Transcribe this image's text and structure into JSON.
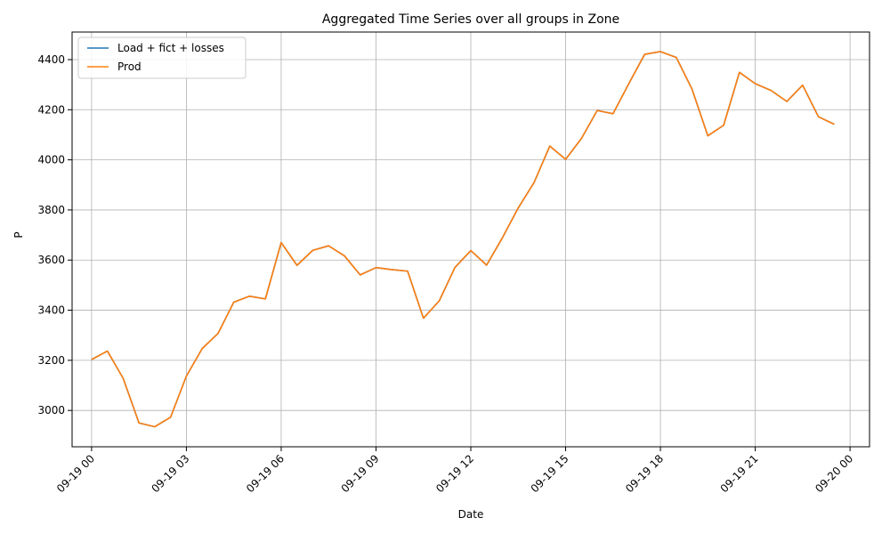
{
  "chart_data": {
    "type": "line",
    "title": "Aggregated Time Series over all groups in Zone",
    "xlabel": "Date",
    "ylabel": "P",
    "x_range": [
      "09-18 23:23",
      "09-20 00:37"
    ],
    "ylim": [
      2855,
      4510
    ],
    "grid": true,
    "legend_placement": "top-left",
    "x_ticks": [
      "09-19 00",
      "09-19 03",
      "09-19 06",
      "09-19 09",
      "09-19 12",
      "09-19 15",
      "09-19 18",
      "09-19 21",
      "09-20 00"
    ],
    "y_ticks": [
      3000,
      3200,
      3400,
      3600,
      3800,
      4000,
      4200,
      4400
    ],
    "x": [
      "09-19 00:00",
      "09-19 00:30",
      "09-19 01:00",
      "09-19 01:30",
      "09-19 02:00",
      "09-19 02:30",
      "09-19 03:00",
      "09-19 03:30",
      "09-19 04:00",
      "09-19 04:30",
      "09-19 05:00",
      "09-19 05:30",
      "09-19 06:00",
      "09-19 06:30",
      "09-19 07:00",
      "09-19 07:30",
      "09-19 08:00",
      "09-19 08:30",
      "09-19 09:00",
      "09-19 09:30",
      "09-19 10:00",
      "09-19 10:30",
      "09-19 11:00",
      "09-19 11:30",
      "09-19 12:00",
      "09-19 12:30",
      "09-19 13:00",
      "09-19 13:30",
      "09-19 14:00",
      "09-19 14:30",
      "09-19 15:00",
      "09-19 15:30",
      "09-19 16:00",
      "09-19 16:30",
      "09-19 17:00",
      "09-19 17:30",
      "09-19 18:00",
      "09-19 18:30",
      "09-19 19:00",
      "09-19 19:30",
      "09-19 20:00",
      "09-19 20:30",
      "09-19 21:00",
      "09-19 21:30",
      "09-19 22:00",
      "09-19 22:30",
      "09-19 23:00",
      "09-19 23:30"
    ],
    "series": [
      {
        "name": "Load + fict + losses",
        "color": "#1f77b4",
        "values": [
          3203,
          3237,
          3128,
          2950,
          2935,
          2973,
          3137,
          3247,
          3307,
          3432,
          3456,
          3445,
          3670,
          3579,
          3639,
          3657,
          3617,
          3541,
          3570,
          3562,
          3556,
          3368,
          3437,
          3571,
          3638,
          3580,
          3689,
          3808,
          3909,
          4055,
          4002,
          4085,
          4197,
          4184,
          4304,
          4421,
          4432,
          4409,
          4282,
          4096,
          4138,
          4349,
          4304,
          4277,
          4233,
          4298,
          4172,
          4142
        ]
      },
      {
        "name": "Prod",
        "color": "#ff7f0e",
        "values": [
          3203,
          3237,
          3128,
          2950,
          2935,
          2973,
          3137,
          3247,
          3307,
          3432,
          3456,
          3445,
          3670,
          3579,
          3639,
          3657,
          3617,
          3541,
          3570,
          3562,
          3556,
          3368,
          3437,
          3571,
          3638,
          3580,
          3689,
          3808,
          3909,
          4055,
          4002,
          4085,
          4197,
          4184,
          4304,
          4421,
          4432,
          4409,
          4282,
          4096,
          4138,
          4349,
          4304,
          4277,
          4233,
          4298,
          4172,
          4142
        ]
      }
    ]
  }
}
